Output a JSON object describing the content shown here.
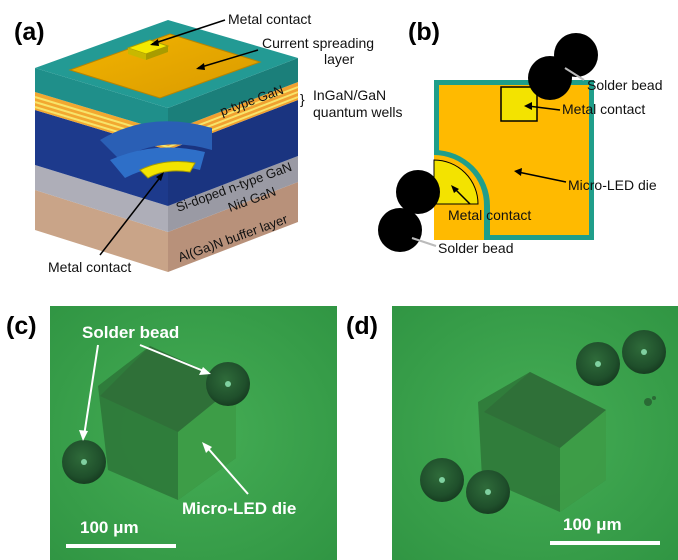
{
  "panels": {
    "a": {
      "letter": "(a)",
      "labels": {
        "metal_contact_top": "Metal contact",
        "current_spreading_1": "Current spreading",
        "current_spreading_2": "layer",
        "qw_1": "InGaN/GaN",
        "qw_2": "quantum wells",
        "metal_contact_bottom": "Metal contact"
      },
      "layers": {
        "p_type": "p-type GaN",
        "n_type": "Si-doped n-type GaN",
        "nid": "Nid GaN",
        "buffer": "Al(Ga)N buffer layer"
      }
    },
    "b": {
      "letter": "(b)",
      "labels": {
        "solder_top": "Solder bead",
        "metal_contact_1": "Metal contact",
        "micro_led_die": "Micro-LED die",
        "metal_contact_2": "Metal contact",
        "solder_bottom": "Solder bead"
      }
    },
    "c": {
      "letter": "(c)",
      "labels": {
        "solder": "Solder bead",
        "micro_led_die": "Micro-LED die",
        "scale": "100 μm"
      }
    },
    "d": {
      "letter": "(d)",
      "labels": {
        "scale": "100 μm"
      }
    }
  },
  "colors": {
    "teal": "#1f8f8a",
    "gold": "#e3a300",
    "yellow": "#f3e300",
    "navy": "#1d3a8c",
    "blue": "#2e6fc8",
    "gray": "#a8a8b0",
    "tan": "#c9a488",
    "micro_green": "#3aa24a"
  }
}
